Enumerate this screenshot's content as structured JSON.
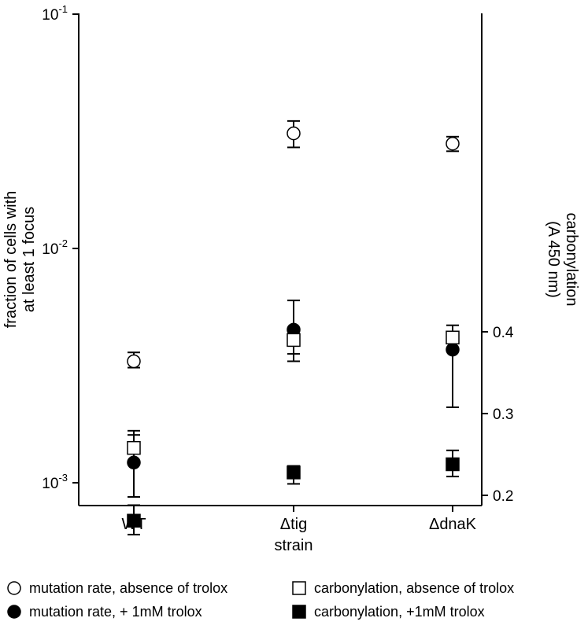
{
  "chart_data": {
    "type": "scatter",
    "categories": [
      "WT",
      "Δtig",
      "ΔdnaK"
    ],
    "xlabel": "strain",
    "left_axis": {
      "label_lines": [
        "fraction of cells with",
        "at least 1 focus"
      ],
      "scale": "log",
      "range": [
        0.00085,
        0.1
      ],
      "ticks": [
        {
          "value": 0.001,
          "base": "10",
          "exp": "-3"
        },
        {
          "value": 0.01,
          "base": "10",
          "exp": "-2"
        },
        {
          "value": 0.1,
          "base": "10",
          "exp": "-1"
        }
      ]
    },
    "right_axis": {
      "label_lines": [
        "carbonylation",
        "(A 450 nm)"
      ],
      "scale": "linear",
      "range": [
        0.15,
        0.42
      ],
      "ticks": [
        0.2,
        0.3,
        0.4
      ],
      "tick_labels": [
        "0.2",
        "0.3",
        "0.4"
      ]
    },
    "series": [
      {
        "name": "mutation rate, absence of trolox",
        "marker": "open-circle",
        "axis": "left",
        "values": [
          0.0033,
          0.031,
          0.028
        ],
        "err_low": [
          0.0031,
          0.027,
          0.026
        ],
        "err_high": [
          0.0036,
          0.035,
          0.03
        ]
      },
      {
        "name": "mutation rate, + 1mM trolox",
        "marker": "filled-circle",
        "axis": "left",
        "values": [
          0.00122,
          0.0045,
          0.0037
        ],
        "err_low": [
          0.00087,
          0.0033,
          0.0021
        ],
        "err_high": [
          0.0016,
          0.006,
          0.0047
        ]
      },
      {
        "name": "carbonylation, absence of trolox",
        "marker": "open-square",
        "axis": "right",
        "values": [
          0.258,
          0.39,
          0.393
        ],
        "err_low": [
          0.253,
          0.373,
          0.386
        ],
        "err_high": [
          0.279,
          0.405,
          0.4
        ]
      },
      {
        "name": "carbonylation, +1mM trolox",
        "marker": "filled-square",
        "axis": "right",
        "values": [
          0.169,
          0.228,
          0.238
        ],
        "err_low": [
          0.152,
          0.214,
          0.223
        ],
        "err_high": [
          0.188,
          0.236,
          0.255
        ]
      }
    ],
    "legend": {
      "placement": "bottom",
      "entries": [
        {
          "label": "mutation rate, absence of trolox",
          "marker": "open-circle"
        },
        {
          "label": "mutation rate, + 1mM trolox",
          "marker": "filled-circle"
        },
        {
          "label": "carbonylation, absence of trolox",
          "marker": "open-square"
        },
        {
          "label": "carbonylation, +1mM trolox",
          "marker": "filled-square"
        }
      ]
    },
    "grid": false
  }
}
